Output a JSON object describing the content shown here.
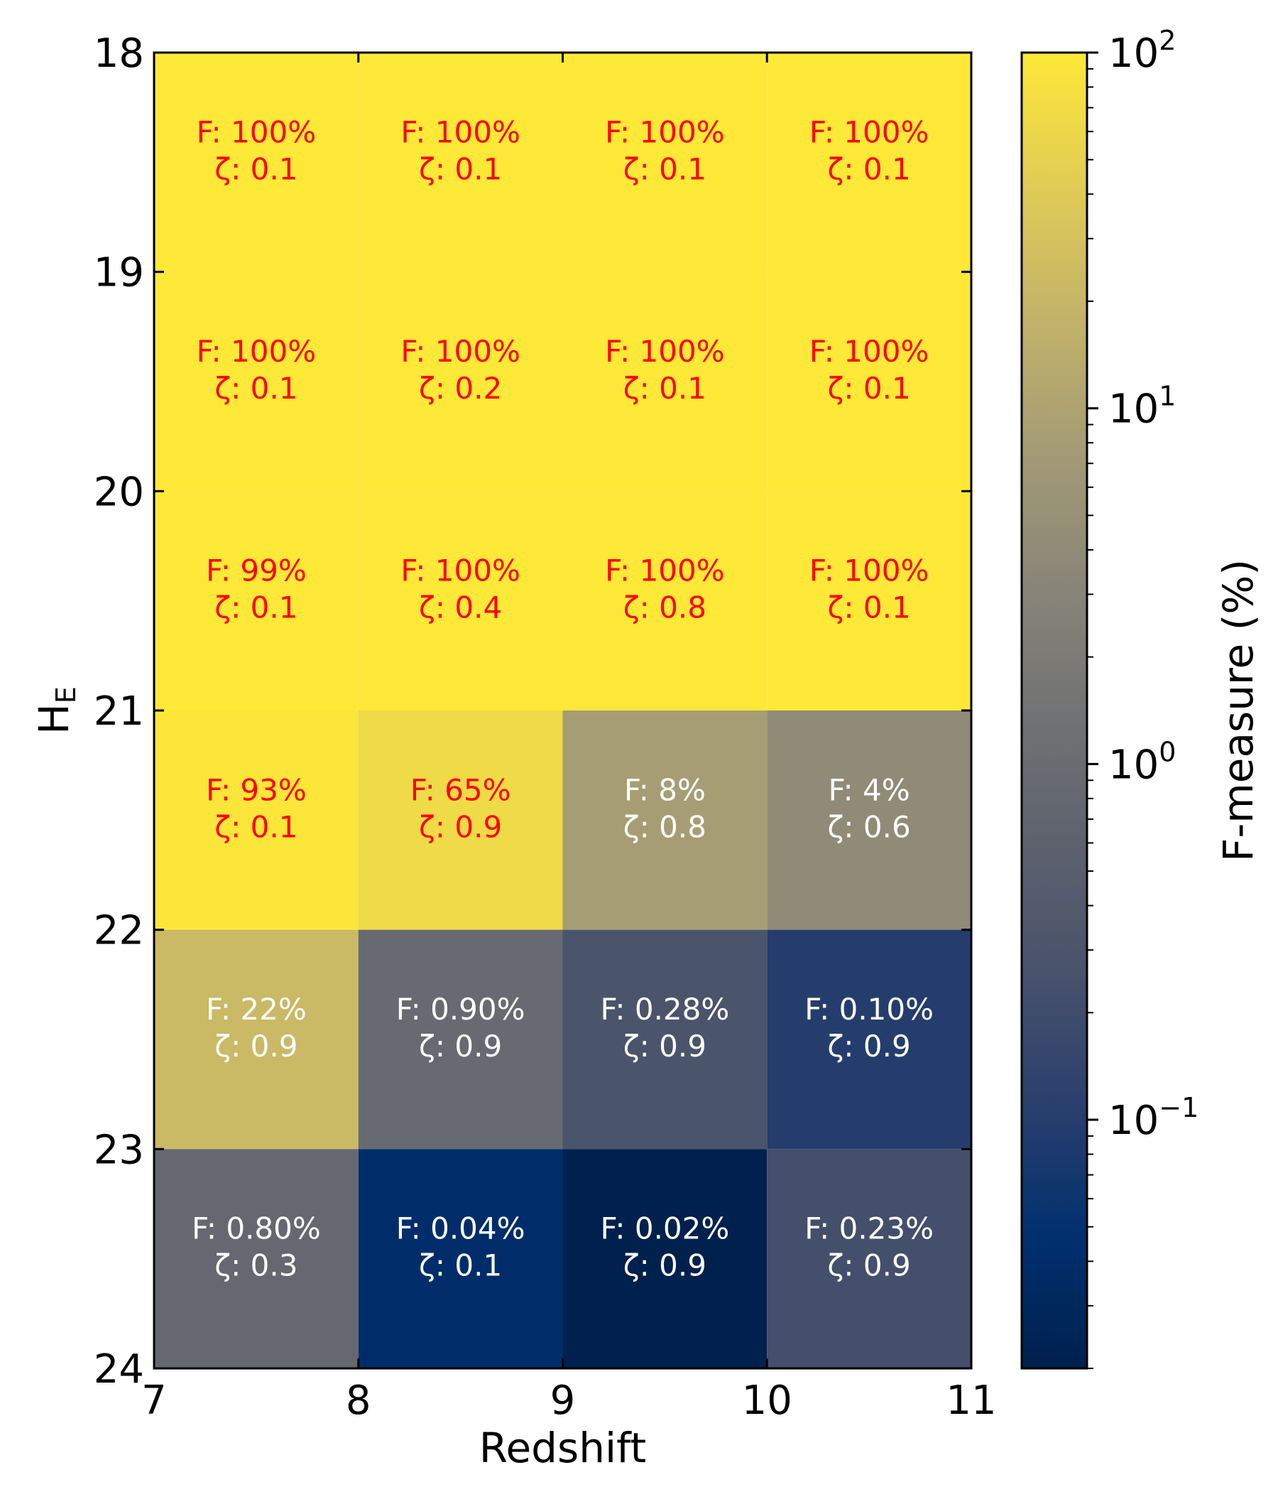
{
  "chart_data": {
    "type": "heatmap",
    "xlabel": "Redshift",
    "ylabel": "H",
    "ylabel_subscript": "E",
    "x_edges": [
      7,
      8,
      9,
      10,
      11
    ],
    "y_edges": [
      18,
      19,
      20,
      21,
      22,
      23,
      24
    ],
    "x_ticks": [
      "7",
      "8",
      "9",
      "10",
      "11"
    ],
    "y_ticks": [
      "18",
      "19",
      "20",
      "21",
      "22",
      "23",
      "24"
    ],
    "xlim": [
      7,
      11
    ],
    "ylim": [
      18,
      24
    ],
    "y_inverted": true,
    "cells": [
      {
        "x": 7.5,
        "y": 18.5,
        "F": 100,
        "zeta": 0.1,
        "label": "F: 100%",
        "zeta_label": "ζ: 0.1",
        "text_color": "#ff0000"
      },
      {
        "x": 8.5,
        "y": 18.5,
        "F": 100,
        "zeta": 0.1,
        "label": "F: 100%",
        "zeta_label": "ζ: 0.1",
        "text_color": "#ff0000"
      },
      {
        "x": 9.5,
        "y": 18.5,
        "F": 100,
        "zeta": 0.1,
        "label": "F: 100%",
        "zeta_label": "ζ: 0.1",
        "text_color": "#ff0000"
      },
      {
        "x": 10.5,
        "y": 18.5,
        "F": 100,
        "zeta": 0.1,
        "label": "F: 100%",
        "zeta_label": "ζ: 0.1",
        "text_color": "#ff0000"
      },
      {
        "x": 7.5,
        "y": 19.5,
        "F": 100,
        "zeta": 0.1,
        "label": "F: 100%",
        "zeta_label": "ζ: 0.1",
        "text_color": "#ff0000"
      },
      {
        "x": 8.5,
        "y": 19.5,
        "F": 100,
        "zeta": 0.2,
        "label": "F: 100%",
        "zeta_label": "ζ: 0.2",
        "text_color": "#ff0000"
      },
      {
        "x": 9.5,
        "y": 19.5,
        "F": 100,
        "zeta": 0.1,
        "label": "F: 100%",
        "zeta_label": "ζ: 0.1",
        "text_color": "#ff0000"
      },
      {
        "x": 10.5,
        "y": 19.5,
        "F": 100,
        "zeta": 0.1,
        "label": "F: 100%",
        "zeta_label": "ζ: 0.1",
        "text_color": "#ff0000"
      },
      {
        "x": 7.5,
        "y": 20.5,
        "F": 99,
        "zeta": 0.1,
        "label": "F: 99%",
        "zeta_label": "ζ: 0.1",
        "text_color": "#ff0000"
      },
      {
        "x": 8.5,
        "y": 20.5,
        "F": 100,
        "zeta": 0.4,
        "label": "F: 100%",
        "zeta_label": "ζ: 0.4",
        "text_color": "#ff0000"
      },
      {
        "x": 9.5,
        "y": 20.5,
        "F": 100,
        "zeta": 0.8,
        "label": "F: 100%",
        "zeta_label": "ζ: 0.8",
        "text_color": "#ff0000"
      },
      {
        "x": 10.5,
        "y": 20.5,
        "F": 100,
        "zeta": 0.1,
        "label": "F: 100%",
        "zeta_label": "ζ: 0.1",
        "text_color": "#ff0000"
      },
      {
        "x": 7.5,
        "y": 21.5,
        "F": 93,
        "zeta": 0.1,
        "label": "F: 93%",
        "zeta_label": "ζ: 0.1",
        "text_color": "#ff0000"
      },
      {
        "x": 8.5,
        "y": 21.5,
        "F": 65,
        "zeta": 0.9,
        "label": "F: 65%",
        "zeta_label": "ζ: 0.9",
        "text_color": "#ff0000"
      },
      {
        "x": 9.5,
        "y": 21.5,
        "F": 8,
        "zeta": 0.8,
        "label": "F: 8%",
        "zeta_label": "ζ: 0.8",
        "text_color": "#ffffff"
      },
      {
        "x": 10.5,
        "y": 21.5,
        "F": 4,
        "zeta": 0.6,
        "label": "F: 4%",
        "zeta_label": "ζ: 0.6",
        "text_color": "#ffffff"
      },
      {
        "x": 7.5,
        "y": 22.5,
        "F": 22,
        "zeta": 0.9,
        "label": "F: 22%",
        "zeta_label": "ζ: 0.9",
        "text_color": "#ffffff"
      },
      {
        "x": 8.5,
        "y": 22.5,
        "F": 0.9,
        "zeta": 0.9,
        "label": "F: 0.90%",
        "zeta_label": "ζ: 0.9",
        "text_color": "#ffffff"
      },
      {
        "x": 9.5,
        "y": 22.5,
        "F": 0.28,
        "zeta": 0.9,
        "label": "F: 0.28%",
        "zeta_label": "ζ: 0.9",
        "text_color": "#ffffff"
      },
      {
        "x": 10.5,
        "y": 22.5,
        "F": 0.1,
        "zeta": 0.9,
        "label": "F: 0.10%",
        "zeta_label": "ζ: 0.9",
        "text_color": "#ffffff"
      },
      {
        "x": 7.5,
        "y": 23.5,
        "F": 0.8,
        "zeta": 0.3,
        "label": "F: 0.80%",
        "zeta_label": "ζ: 0.3",
        "text_color": "#ffffff"
      },
      {
        "x": 8.5,
        "y": 23.5,
        "F": 0.04,
        "zeta": 0.1,
        "label": "F: 0.04%",
        "zeta_label": "ζ: 0.1",
        "text_color": "#ffffff"
      },
      {
        "x": 9.5,
        "y": 23.5,
        "F": 0.02,
        "zeta": 0.9,
        "label": "F: 0.02%",
        "zeta_label": "ζ: 0.9",
        "text_color": "#ffffff"
      },
      {
        "x": 10.5,
        "y": 23.5,
        "F": 0.23,
        "zeta": 0.9,
        "label": "F: 0.23%",
        "zeta_label": "ζ: 0.9",
        "text_color": "#ffffff"
      }
    ],
    "colorbar": {
      "label": "F-measure (%)",
      "scale": "log",
      "range": [
        0.02,
        100
      ],
      "ticks": [
        {
          "value": 0.1,
          "base": "10",
          "exp": "−1"
        },
        {
          "value": 1,
          "base": "10",
          "exp": "0"
        },
        {
          "value": 10,
          "base": "10",
          "exp": "1"
        },
        {
          "value": 100,
          "base": "10",
          "exp": "2"
        }
      ],
      "colormap": "cividis",
      "colormap_stops": [
        "#00204d",
        "#00306f",
        "#2a3f6d",
        "#48526b",
        "#5e626e",
        "#727374",
        "#8a8678",
        "#a59c74",
        "#c3b369",
        "#e1cc55",
        "#fee838"
      ]
    },
    "grid": false
  }
}
